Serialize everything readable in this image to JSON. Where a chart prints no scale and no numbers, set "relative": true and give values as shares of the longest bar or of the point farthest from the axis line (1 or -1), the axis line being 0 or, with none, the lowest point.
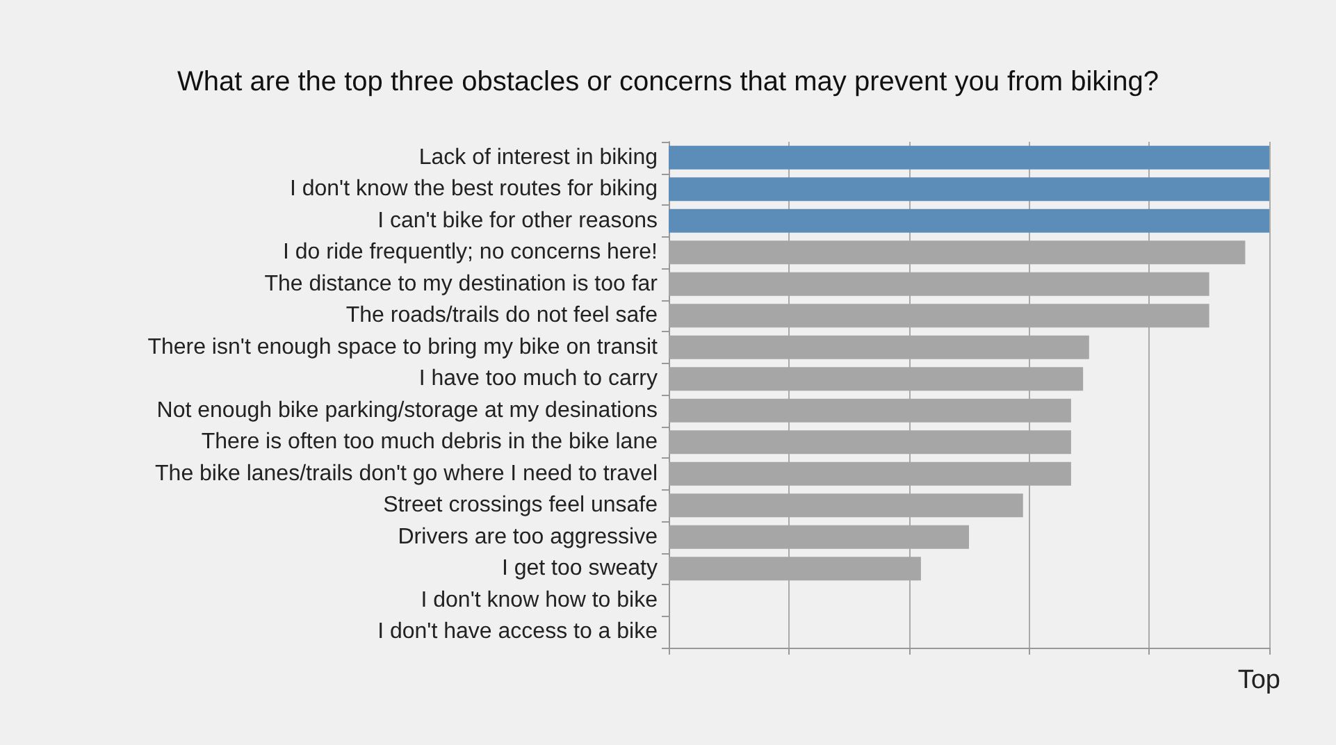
{
  "chart_data": {
    "type": "bar",
    "orientation": "horizontal",
    "relative": true,
    "title": "What are the top three obstacles or concerns that may prevent you from biking?",
    "xlabel": "Top",
    "categories": [
      "Lack of interest in biking",
      "I don't know the best routes for biking",
      "I can't bike for other reasons",
      "I do ride frequently; no concerns here!",
      "The distance to my destination is too far",
      "The roads/trails do not feel safe",
      "There isn't enough space to bring my bike on transit",
      "I have too much to carry",
      "Not enough bike parking/storage at my desinations",
      "There is often too much debris in the bike lane",
      "The bike lanes/trails don't go where I need to travel",
      "Street crossings feel unsafe",
      "Drivers are too aggressive",
      "I get too sweaty",
      "I don't know how to bike",
      "I don't have access to a bike"
    ],
    "values": [
      1,
      1,
      1,
      0.96,
      0.9,
      0.9,
      0.7,
      0.69,
      0.67,
      0.67,
      0.67,
      0.59,
      0.5,
      0.42,
      0,
      0
    ],
    "colors": [
      "#5b8db8",
      "#5b8db8",
      "#5b8db8",
      "#a6a6a6",
      "#a6a6a6",
      "#a6a6a6",
      "#a6a6a6",
      "#a6a6a6",
      "#a6a6a6",
      "#a6a6a6",
      "#a6a6a6",
      "#a6a6a6",
      "#a6a6a6",
      "#a6a6a6",
      "#a6a6a6",
      "#a6a6a6"
    ],
    "grid": "x"
  }
}
